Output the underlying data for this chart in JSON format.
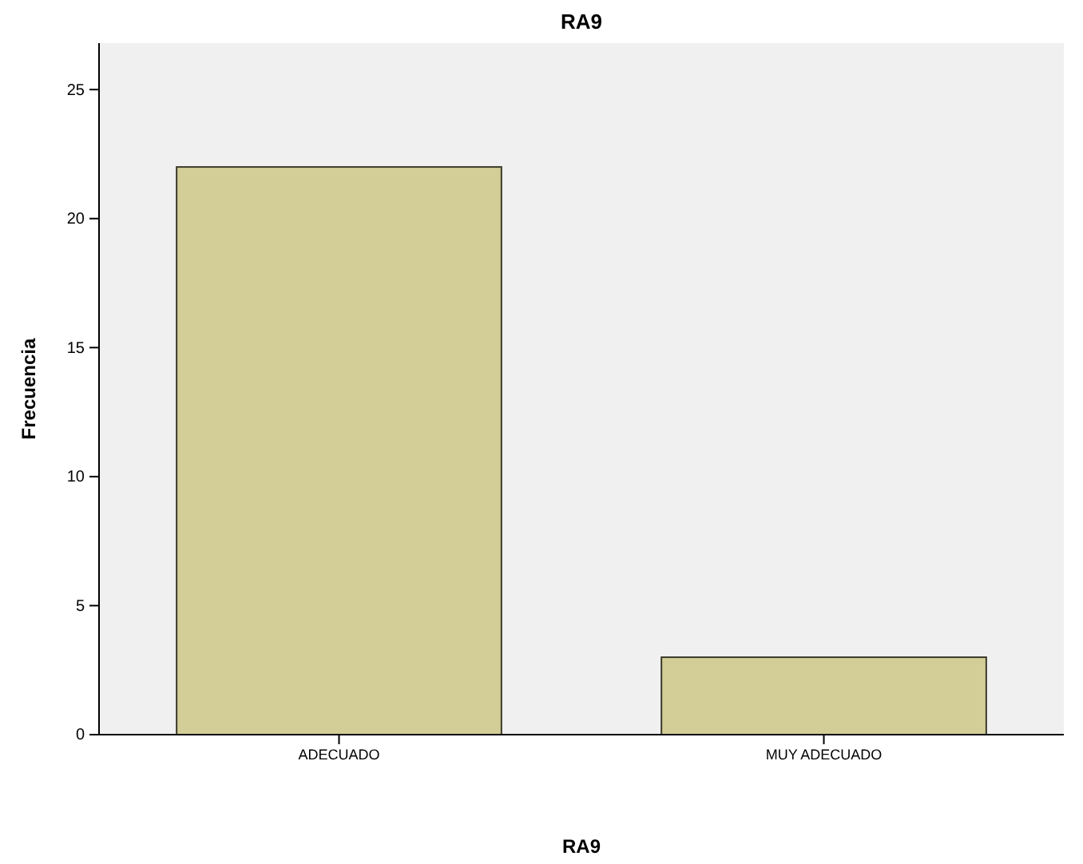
{
  "chart_data": {
    "type": "bar",
    "title": "RA9",
    "xlabel": "RA9",
    "ylabel": "Frecuencia",
    "categories": [
      "ADECUADO",
      "MUY ADECUADO"
    ],
    "values": [
      22,
      3
    ],
    "color": "#d3ce97",
    "ylim": [
      0,
      26.8
    ],
    "yticks": [
      0,
      5,
      10,
      15,
      20,
      25
    ]
  }
}
